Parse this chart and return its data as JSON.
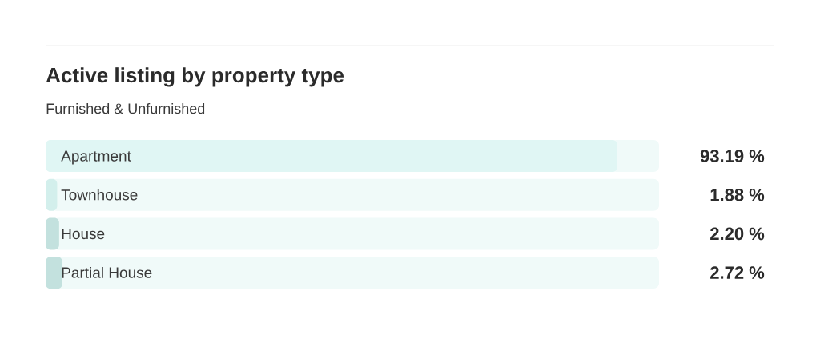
{
  "chart_data": {
    "type": "bar",
    "orientation": "horizontal",
    "title": "Active listing by property type",
    "subtitle": "Furnished & Unfurnished",
    "categories": [
      "Apartment",
      "Townhouse",
      "House",
      "Partial House"
    ],
    "values": [
      93.19,
      1.88,
      2.2,
      2.72
    ],
    "colors": [
      "#e0f6f4",
      "#d3efec",
      "#c3e1de",
      "#c3e1de"
    ],
    "value_labels": [
      "93.19 %",
      "1.88 %",
      "2.20 %",
      "2.72 %"
    ],
    "xlim": [
      0,
      100
    ],
    "tick_labels": "y"
  }
}
